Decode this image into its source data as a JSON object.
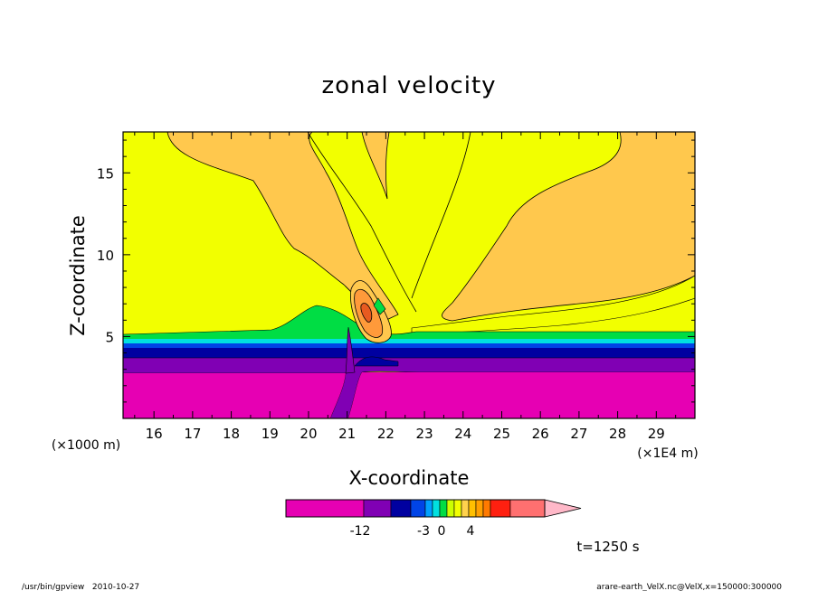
{
  "chart_data": {
    "type": "contour",
    "title": "zonal velocity",
    "xlabel": "X-coordinate",
    "ylabel": "Z-coordinate",
    "x_unit_label": "(×1E4 m)",
    "y_unit_label": "(×1000 m)",
    "xlim": [
      15.2,
      30.0
    ],
    "ylim": [
      0,
      17.5
    ],
    "x_ticks": [
      "16",
      "17",
      "18",
      "19",
      "20",
      "21",
      "22",
      "23",
      "24",
      "25",
      "26",
      "27",
      "28",
      "29"
    ],
    "y_ticks": [
      "5",
      "10",
      "15"
    ],
    "colorbar": {
      "colors": [
        "#e600b3",
        "#8000b4",
        "#0000a0",
        "#0044e6",
        "#00a0ff",
        "#00e0e0",
        "#00dd44",
        "#ccff00",
        "#f2ff00",
        "#ffd24d",
        "#ffc000",
        "#ffa000",
        "#ff7a00",
        "#ff2010",
        "#ff7070",
        "#ffb8c8"
      ],
      "tick_labels": [
        "-12",
        "-3",
        "0",
        "4"
      ]
    },
    "annotation": "t=1250 s"
  },
  "footer": {
    "left": "/usr/bin/gpview   2010-10-27",
    "right": "arare-earth_VelX.nc@VelX,x=150000:300000"
  },
  "colors": {
    "magenta": "#e600b3",
    "purple": "#8000b4",
    "navy": "#0000a0",
    "blue": "#0044e6",
    "cyan": "#00e0e0",
    "green": "#00dd44",
    "yellow": "#f2ff00",
    "orange_light": "#ffc84d",
    "orange": "#ff9a3a",
    "red_orange": "#e85a20"
  }
}
